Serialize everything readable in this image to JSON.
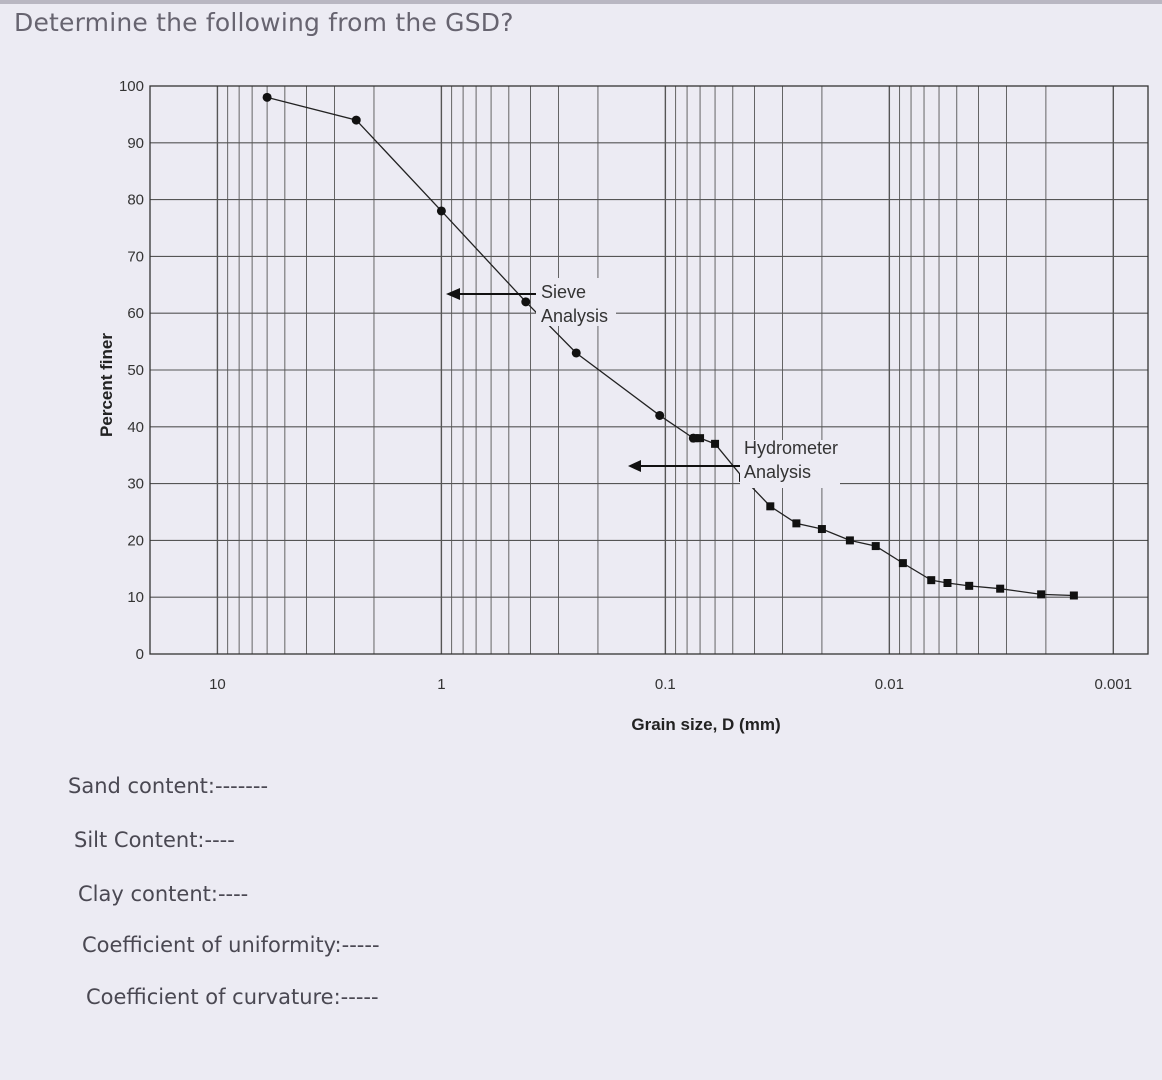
{
  "heading": "Determine the following from the GSD?",
  "questions": [
    "Sand content:-------",
    "Silt Content:----",
    "Clay content:----",
    "Coefficient of uniformity:-----",
    "Coefficient of curvature:-----"
  ],
  "chart_data": {
    "type": "scatter",
    "xlabel": "Grain size, D (mm)",
    "ylabel": "Percent finer",
    "x_scale": "log",
    "x_reversed": true,
    "xlim": [
      20,
      0.0007
    ],
    "ylim": [
      0,
      100
    ],
    "x_tick_labels": [
      "10",
      "1",
      "0.1",
      "0.01",
      "0.001"
    ],
    "x_ticks": [
      10,
      1,
      0.1,
      0.01,
      0.001
    ],
    "y_ticks": [
      0,
      10,
      20,
      30,
      40,
      50,
      60,
      70,
      80,
      90,
      100
    ],
    "grid": true,
    "series": [
      {
        "name": "Sieve Analysis",
        "marker": "circle",
        "x": [
          6.0,
          2.4,
          1.0,
          0.42,
          0.25,
          0.106,
          0.075
        ],
        "y": [
          98,
          94,
          78,
          62,
          53,
          42,
          38
        ]
      },
      {
        "name": "Hydrometer Analysis",
        "marker": "square",
        "x": [
          0.074,
          0.07,
          0.06,
          0.045,
          0.034,
          0.026,
          0.02,
          0.015,
          0.0115,
          0.0087,
          0.0065,
          0.0055,
          0.0044,
          0.0032,
          0.0021,
          0.0015
        ],
        "y": [
          38,
          38,
          37,
          31,
          26,
          23,
          22,
          20,
          19,
          16,
          13,
          12.5,
          12,
          11.5,
          10.5,
          10.3
        ]
      }
    ],
    "annotations": [
      {
        "text": "Sieve",
        "text2": "Analysis"
      },
      {
        "text": "Hydrometer",
        "text2": "Analysis"
      }
    ]
  }
}
